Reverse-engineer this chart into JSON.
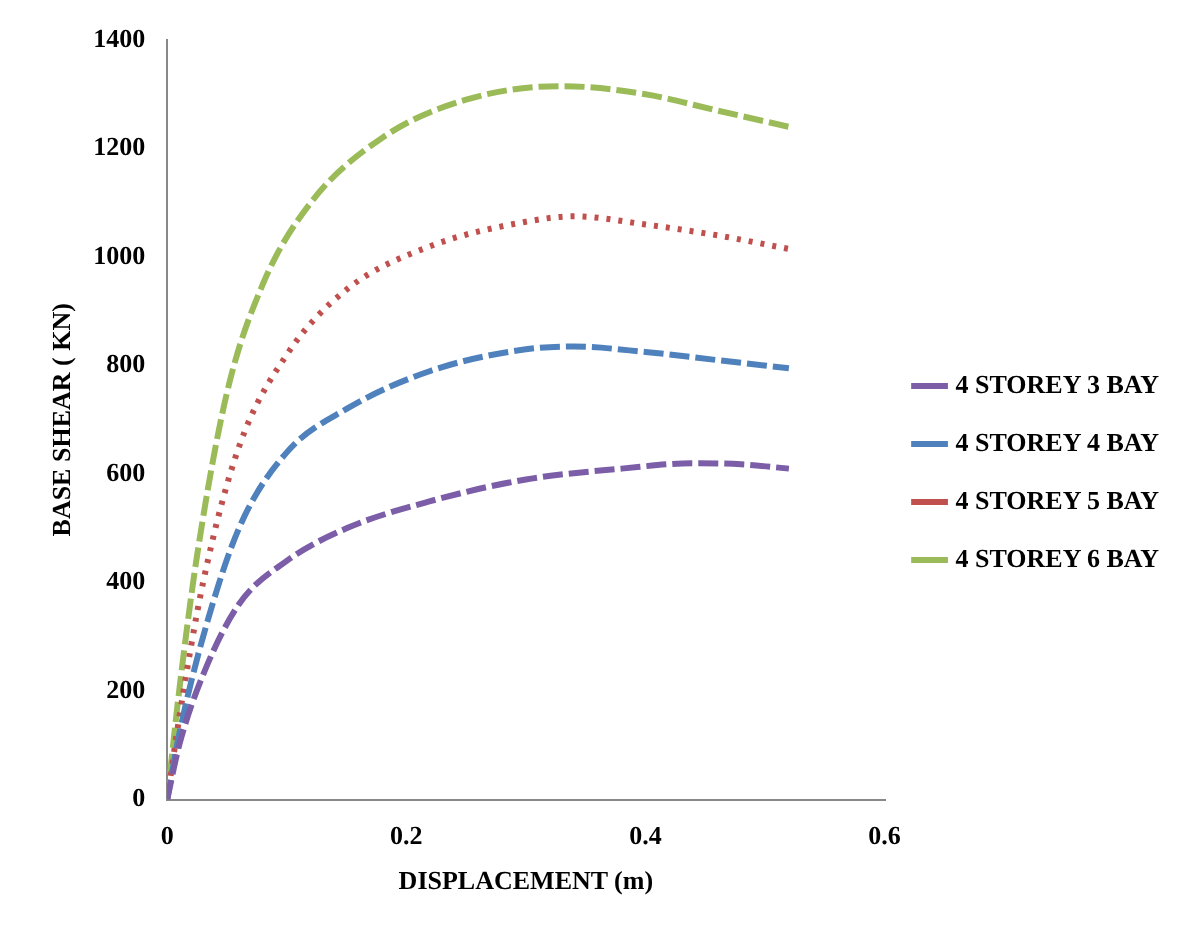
{
  "chart_data": {
    "type": "line",
    "xlabel": "DISPLACEMENT (m)",
    "ylabel": "BASE SHEAR ( KN)",
    "xlim": [
      0,
      0.6
    ],
    "xticks": [
      0,
      0.2,
      0.4,
      0.6
    ],
    "ylim": [
      0,
      1400
    ],
    "yticks": [
      0,
      200,
      400,
      600,
      800,
      1000,
      1200,
      1400
    ],
    "grid": false,
    "legend": "right",
    "marker": "none",
    "series": [
      {
        "name": "4 STOREY 3 BAY",
        "color": "#7b5ea7",
        "line_style": "dashed",
        "x": [
          0,
          0.01,
          0.03,
          0.06,
          0.1,
          0.15,
          0.22,
          0.3,
          0.38,
          0.44,
          0.48,
          0.52
        ],
        "values": [
          0,
          100,
          230,
          360,
          440,
          500,
          550,
          590,
          610,
          620,
          618,
          610
        ]
      },
      {
        "name": "4 STOREY 4 BAY",
        "color": "#4f81bd",
        "line_style": "dashed",
        "x": [
          0,
          0.01,
          0.03,
          0.06,
          0.1,
          0.15,
          0.22,
          0.3,
          0.34,
          0.4,
          0.46,
          0.52
        ],
        "values": [
          0,
          120,
          300,
          500,
          640,
          720,
          790,
          830,
          835,
          825,
          810,
          795
        ]
      },
      {
        "name": "4 STOREY 5 BAY",
        "color": "#c0504d",
        "line_style": "dotted",
        "x": [
          0,
          0.01,
          0.03,
          0.06,
          0.1,
          0.15,
          0.22,
          0.3,
          0.34,
          0.4,
          0.46,
          0.52
        ],
        "values": [
          0,
          150,
          400,
          650,
          820,
          940,
          1020,
          1065,
          1075,
          1060,
          1040,
          1015
        ]
      },
      {
        "name": "4 STOREY 6 BAY",
        "color": "#9bbb59",
        "line_style": "dashed",
        "x": [
          0,
          0.01,
          0.025,
          0.05,
          0.08,
          0.12,
          0.18,
          0.25,
          0.33,
          0.4,
          0.46,
          0.52
        ],
        "values": [
          0,
          200,
          450,
          750,
          950,
          1100,
          1220,
          1290,
          1315,
          1300,
          1270,
          1240
        ]
      }
    ]
  }
}
